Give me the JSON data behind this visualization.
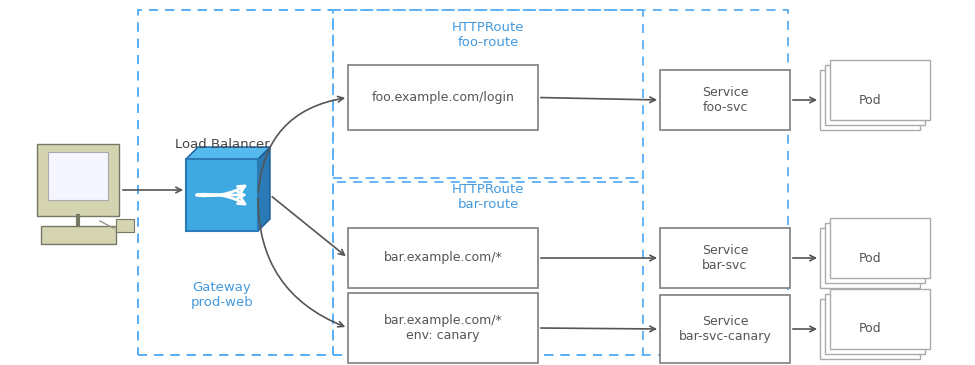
{
  "bg_color": "#ffffff",
  "dash_color": "#5aaff5",
  "box_ec": "#888888",
  "box_fc": "#ffffff",
  "arrow_color": "#555555",
  "blue_front": "#3fa8e0",
  "blue_top": "#6ec6f0",
  "blue_right": "#2a7ab5",
  "gateway_label_color": "#4499dd",
  "httproute_color": "#4499dd",
  "text_color": "#555555",
  "fig_w": 9.75,
  "fig_h": 3.65,
  "dpi": 100,
  "labels": {
    "load_balancer": "Load Balancer",
    "gateway": "Gateway\nprod-web",
    "httproute_foo": "HTTPRoute\nfoo-route",
    "httproute_bar": "HTTPRoute\nbar-route",
    "foo_login": "foo.example.com/login",
    "bar_star": "bar.example.com/*",
    "bar_canary": "bar.example.com/*\nenv: canary",
    "svc_foo": "Service\nfoo-svc",
    "svc_bar": "Service\nbar-svc",
    "svc_bar_canary": "Service\nbar-svc-canary",
    "pod": "Pod"
  }
}
